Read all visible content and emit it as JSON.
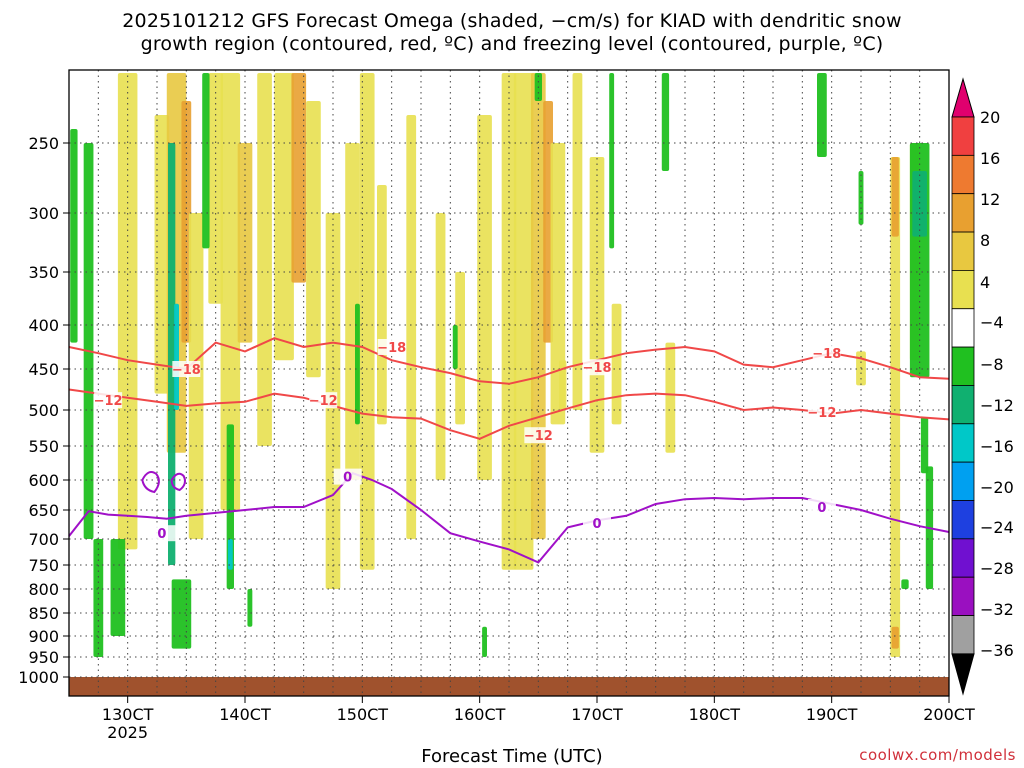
{
  "chart_data": {
    "type": "heatmap",
    "title_line1": "2025101212 GFS Forecast Omega (shaded, −cm/s) for KIAD with dendritic snow",
    "title_line2": "growth region (contoured, red, ºC) and freezing level (contoured, purple, ºC)",
    "xlabel": "Forecast Time (UTC)",
    "x_ticks": [
      "130CT",
      "140CT",
      "150CT",
      "160CT",
      "170CT",
      "180CT",
      "190CT",
      "200CT"
    ],
    "x_year_label": "2025",
    "x_range_hours": [
      0,
      180
    ],
    "y_ticks": [
      "250",
      "300",
      "350",
      "400",
      "450",
      "500",
      "550",
      "600",
      "650",
      "700",
      "750",
      "800",
      "850",
      "900",
      "950",
      "1000"
    ],
    "y_range_hpa": [
      200,
      1010
    ],
    "colorbar_labels": [
      "20",
      "16",
      "12",
      "8",
      "4",
      "−4",
      "−8",
      "−12",
      "−16",
      "−20",
      "−24",
      "−28",
      "−32",
      "−36"
    ],
    "colorbar_colors": [
      "#e0006e",
      "#f04040",
      "#ee7a30",
      "#e8a030",
      "#e8c840",
      "#e8e050",
      "#ffffff",
      "#20c020",
      "#10b070",
      "#00c8c8",
      "#00a0f0",
      "#1e40e0",
      "#7010d0",
      "#9a10c0",
      "#a0a0a0",
      "#000000"
    ],
    "contours": [
      {
        "name": "-18",
        "color": "#f04848",
        "label": "−18",
        "points": [
          [
            0,
            425
          ],
          [
            6,
            432
          ],
          [
            12,
            440
          ],
          [
            18,
            445
          ],
          [
            24,
            450
          ],
          [
            30,
            420
          ],
          [
            36,
            430
          ],
          [
            42,
            415
          ],
          [
            48,
            425
          ],
          [
            54,
            420
          ],
          [
            60,
            425
          ],
          [
            66,
            440
          ],
          [
            72,
            448
          ],
          [
            78,
            455
          ],
          [
            84,
            465
          ],
          [
            90,
            468
          ],
          [
            96,
            460
          ],
          [
            102,
            448
          ],
          [
            108,
            440
          ],
          [
            114,
            432
          ],
          [
            120,
            428
          ],
          [
            126,
            425
          ],
          [
            132,
            430
          ],
          [
            138,
            445
          ],
          [
            144,
            448
          ],
          [
            150,
            440
          ],
          [
            156,
            432
          ],
          [
            162,
            438
          ],
          [
            168,
            448
          ],
          [
            174,
            460
          ],
          [
            180,
            462
          ]
        ],
        "label_positions": [
          [
            24,
            450
          ],
          [
            66,
            425
          ],
          [
            108,
            448
          ],
          [
            155,
            432
          ]
        ]
      },
      {
        "name": "-12",
        "color": "#f04848",
        "label": "−12",
        "points": [
          [
            0,
            475
          ],
          [
            6,
            480
          ],
          [
            12,
            485
          ],
          [
            18,
            490
          ],
          [
            24,
            495
          ],
          [
            30,
            492
          ],
          [
            36,
            490
          ],
          [
            42,
            480
          ],
          [
            48,
            485
          ],
          [
            54,
            495
          ],
          [
            60,
            505
          ],
          [
            66,
            510
          ],
          [
            72,
            512
          ],
          [
            78,
            528
          ],
          [
            84,
            540
          ],
          [
            90,
            522
          ],
          [
            96,
            510
          ],
          [
            102,
            498
          ],
          [
            108,
            488
          ],
          [
            114,
            482
          ],
          [
            120,
            480
          ],
          [
            126,
            482
          ],
          [
            132,
            490
          ],
          [
            138,
            500
          ],
          [
            144,
            497
          ],
          [
            150,
            500
          ],
          [
            156,
            505
          ],
          [
            162,
            500
          ],
          [
            168,
            505
          ],
          [
            174,
            510
          ],
          [
            180,
            513
          ]
        ],
        "label_positions": [
          [
            8,
            488
          ],
          [
            52,
            488
          ],
          [
            96,
            535
          ],
          [
            154,
            503
          ]
        ]
      },
      {
        "name": "0",
        "color": "#a010c8",
        "label": "0",
        "points": [
          [
            0,
            695
          ],
          [
            4,
            652
          ],
          [
            8,
            658
          ],
          [
            12,
            660
          ],
          [
            16,
            662
          ],
          [
            20,
            665
          ],
          [
            24,
            660
          ],
          [
            30,
            655
          ],
          [
            36,
            650
          ],
          [
            42,
            645
          ],
          [
            48,
            645
          ],
          [
            54,
            625
          ],
          [
            58,
            590
          ],
          [
            62,
            600
          ],
          [
            66,
            615
          ],
          [
            72,
            650
          ],
          [
            78,
            690
          ],
          [
            84,
            705
          ],
          [
            90,
            720
          ],
          [
            96,
            745
          ],
          [
            102,
            680
          ],
          [
            108,
            668
          ],
          [
            114,
            660
          ],
          [
            120,
            640
          ],
          [
            126,
            632
          ],
          [
            132,
            630
          ],
          [
            138,
            632
          ],
          [
            144,
            630
          ],
          [
            150,
            630
          ],
          [
            156,
            640
          ],
          [
            162,
            650
          ],
          [
            168,
            665
          ],
          [
            174,
            678
          ],
          [
            180,
            688
          ]
        ],
        "label_positions": [
          [
            19,
            690
          ],
          [
            57,
            595
          ],
          [
            108,
            672
          ],
          [
            154,
            645
          ]
        ]
      }
    ],
    "shaded_regions_note": "omega shading from the original",
    "credit": "coolwx.com/models"
  }
}
